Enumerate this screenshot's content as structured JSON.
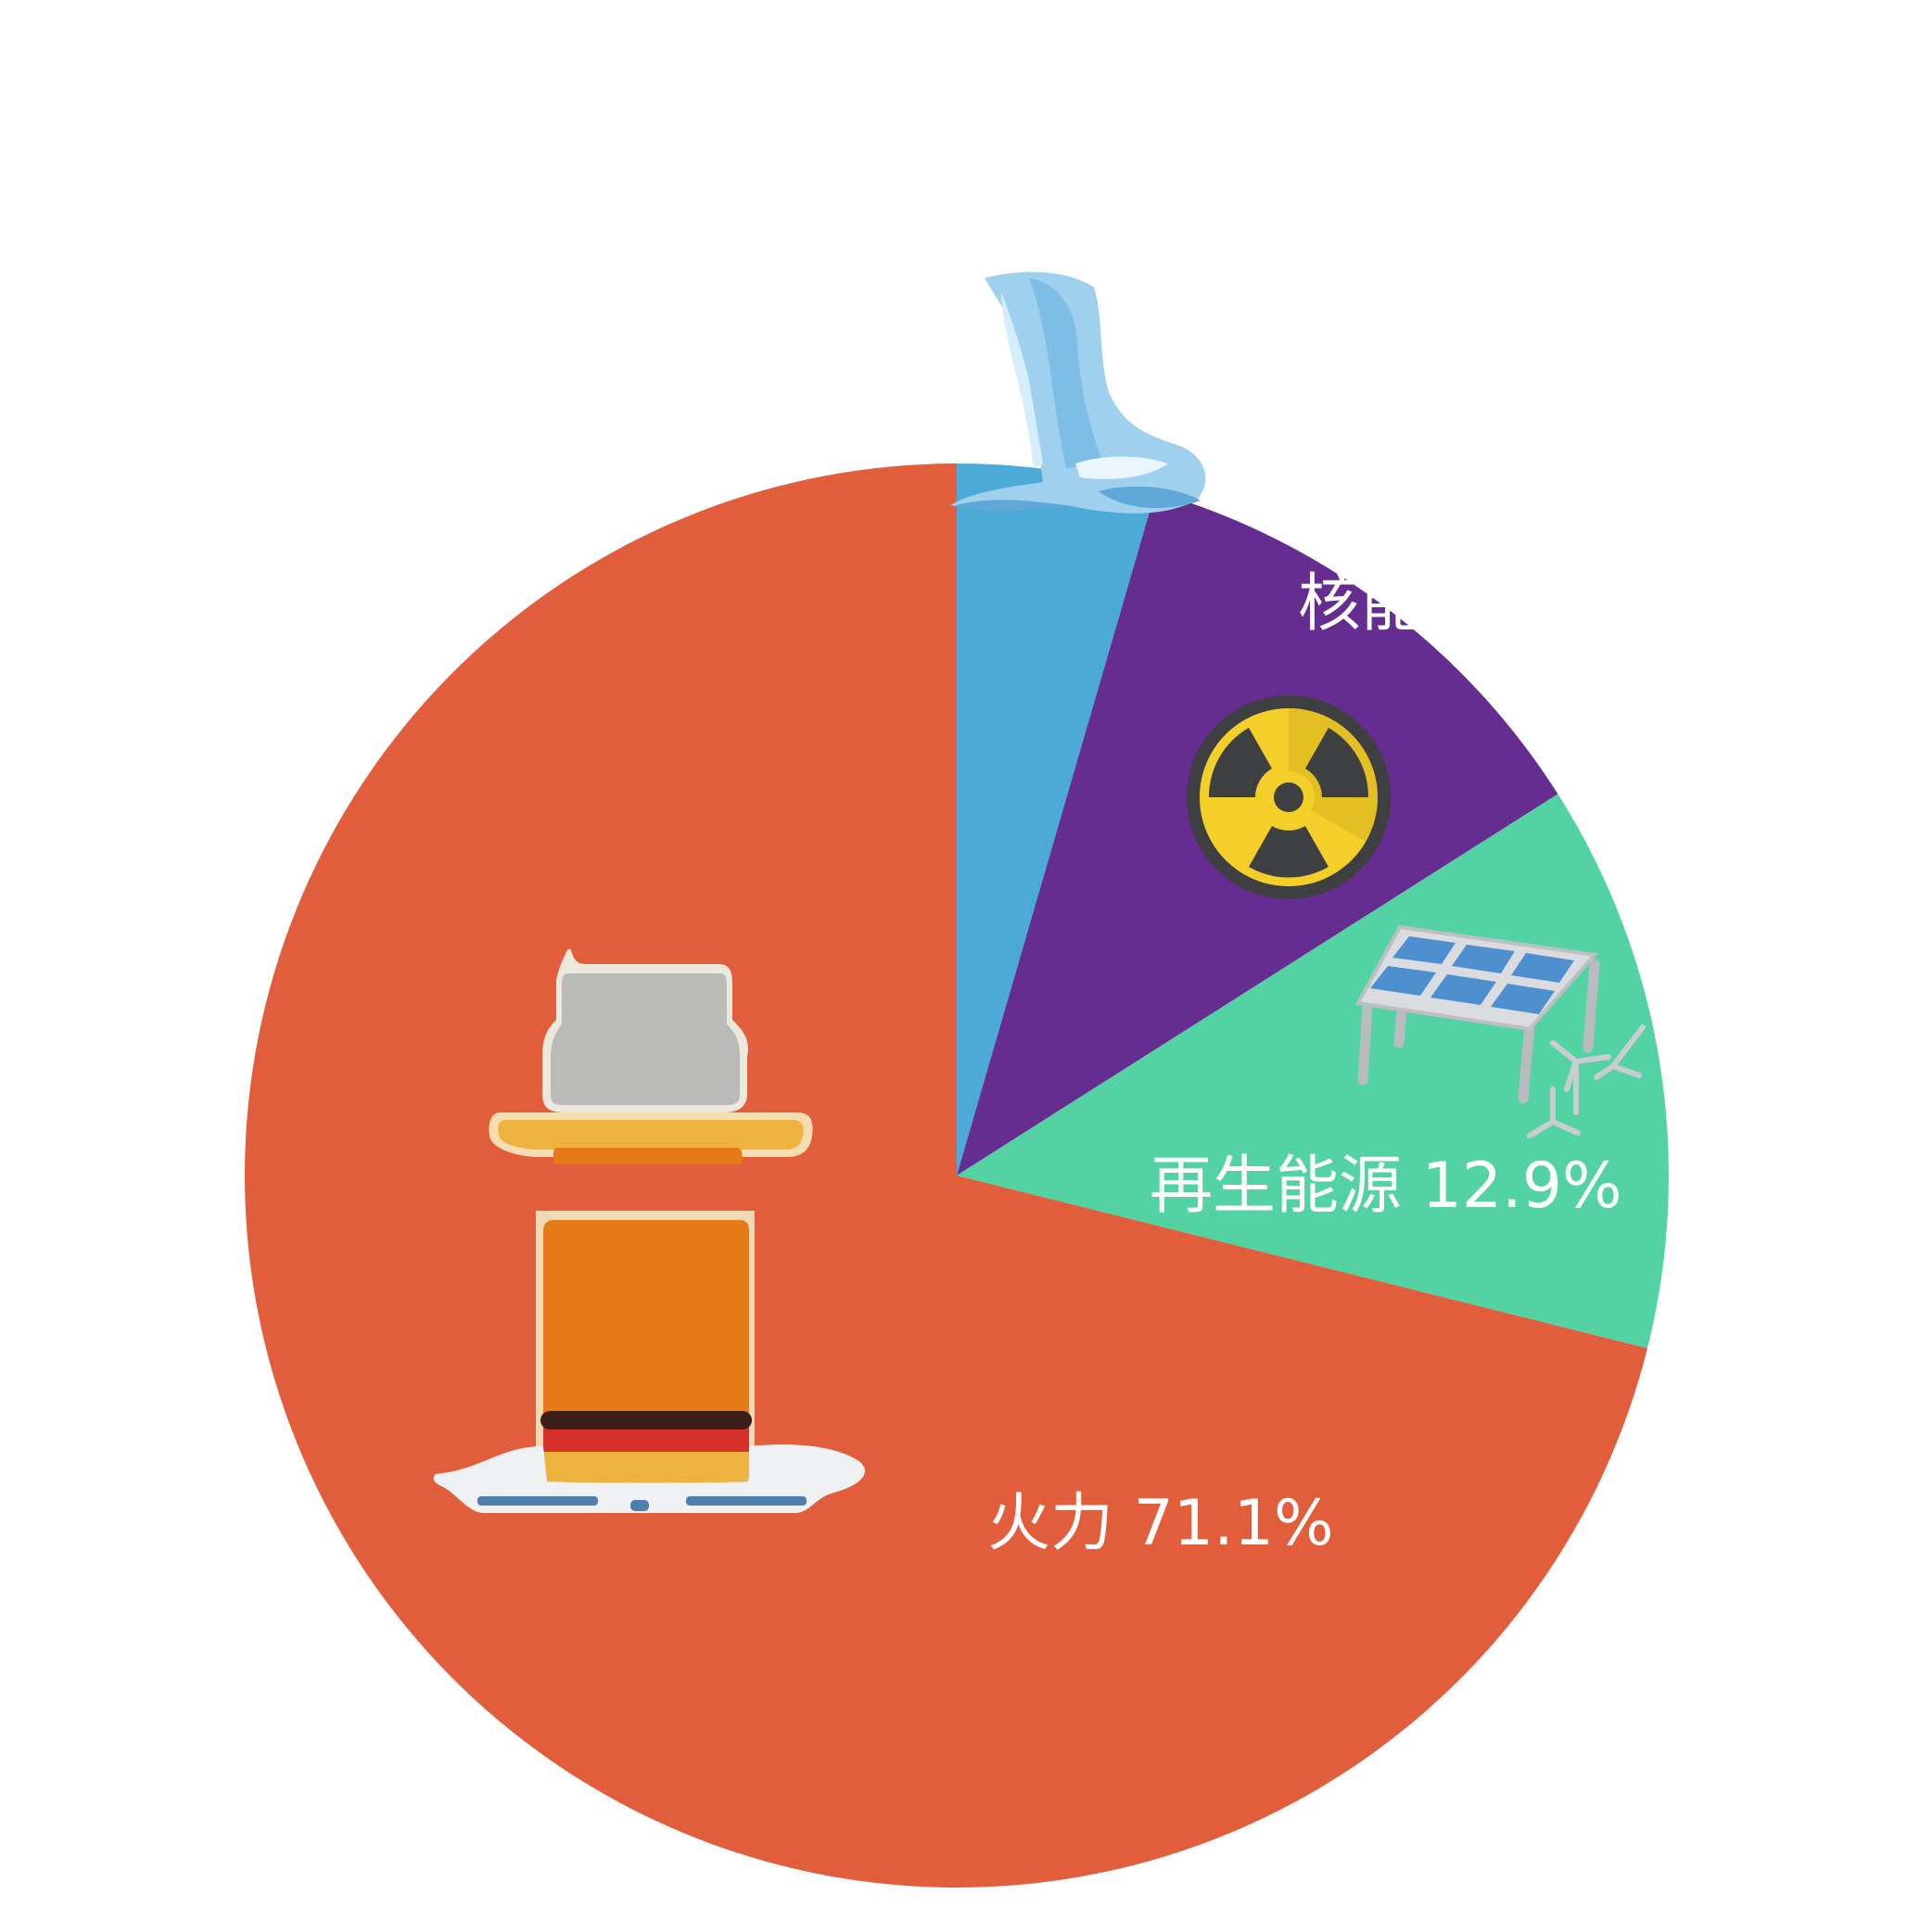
{
  "chart_data": {
    "type": "pie",
    "start": "top",
    "direction": "clockwise",
    "slices": [
      {
        "name": "水力",
        "value": 4.5,
        "color": "#4BAAD6",
        "icon": "waterfall-icon",
        "label": ""
      },
      {
        "name": "核能",
        "value": 11.5,
        "color": "#662D91",
        "icon": "radiation-icon",
        "label": "核能"
      },
      {
        "name": "再生能源",
        "value": 12.9,
        "color": "#53D3A4",
        "icon": "solar-panel-wind-turbine-icon",
        "label": "再生能源  12.9%"
      },
      {
        "name": "火力",
        "value": 71.1,
        "color": "#E25D3B",
        "icon": "power-plant-icon",
        "label": "火力 71.1%"
      }
    ]
  }
}
